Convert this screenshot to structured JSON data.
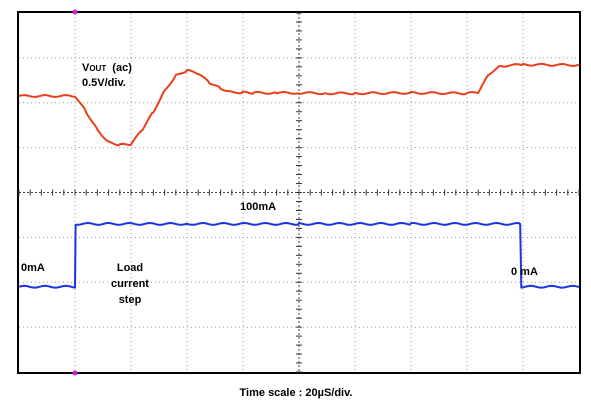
{
  "chart_data": {
    "type": "line",
    "title": "",
    "xlabel": "Time scale : 20µS/div.",
    "x_divisions": 10,
    "y_divisions": 8,
    "grid": true,
    "series": [
      {
        "name": "Vout (ac)",
        "color": "#e8401c",
        "units": "div",
        "x": [
          0,
          1.0,
          1.2,
          1.4,
          1.6,
          1.8,
          2.0,
          2.2,
          2.4,
          2.6,
          2.8,
          3.0,
          3.2,
          3.4,
          3.6,
          3.8,
          4.0,
          4.2,
          4.6,
          5.0,
          5.5,
          6.0,
          7.0,
          8.0,
          8.2,
          8.4,
          8.6,
          9.0,
          10.0
        ],
        "y": [
          2.15,
          2.15,
          1.8,
          1.4,
          1.12,
          1.06,
          1.07,
          1.4,
          1.8,
          2.27,
          2.6,
          2.72,
          2.65,
          2.45,
          2.32,
          2.24,
          2.23,
          2.22,
          2.22,
          2.22,
          2.21,
          2.21,
          2.22,
          2.21,
          2.23,
          2.65,
          2.82,
          2.85,
          2.84
        ]
      },
      {
        "name": "Load current step",
        "color": "#1a34e0",
        "units": "div",
        "x": [
          0,
          1.0,
          1.01,
          3.0,
          5.0,
          7.0,
          8.95,
          8.97,
          10.0
        ],
        "y": [
          -2.1,
          -2.1,
          -0.7,
          -0.7,
          -0.7,
          -0.7,
          -0.7,
          -2.1,
          -2.1
        ]
      }
    ],
    "annotations": {
      "vout_label_main": "Vout",
      "vout_label_suffix": "(ac)",
      "vout_scale": "0.5V/div.",
      "high_level": "100mA",
      "left_level": "0mA",
      "right_level": "0 mA",
      "step_line1": "Load",
      "step_line2": "current",
      "step_line3": "step"
    },
    "trigger_marker_color": "#d020d0"
  }
}
